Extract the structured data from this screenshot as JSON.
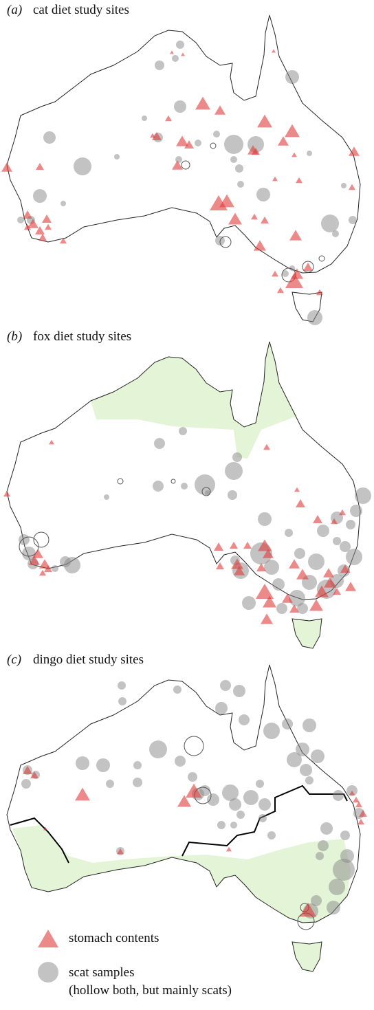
{
  "panels": [
    {
      "label": "(a)",
      "title": "cat diet study sites"
    },
    {
      "label": "(b)",
      "title": "fox diet study sites"
    },
    {
      "label": "(c)",
      "title": "dingo diet study sites"
    }
  ],
  "legend": {
    "stomach": "stomach contents",
    "scat": "scat samples",
    "scat_note": "(hollow both, but mainly scats)"
  }
}
